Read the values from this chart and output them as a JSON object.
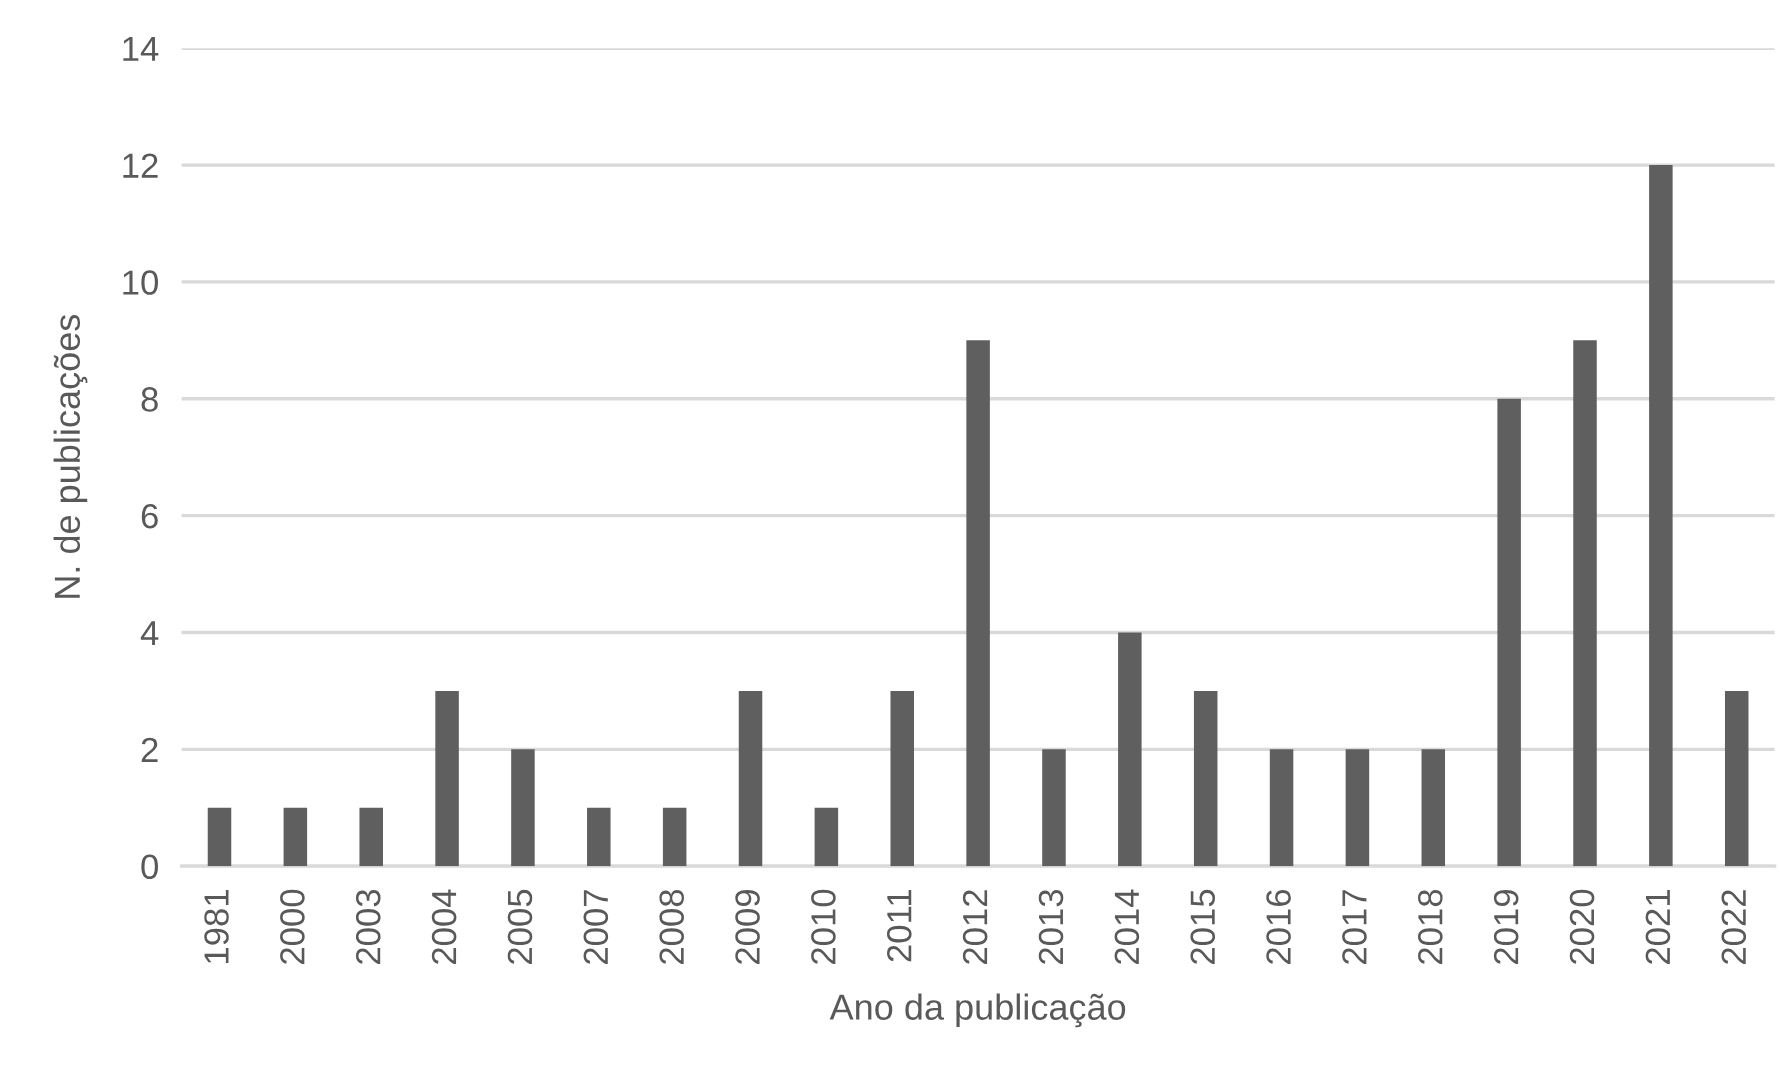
{
  "chart_data": {
    "type": "bar",
    "xlabel": "Ano da publicação",
    "ylabel": "N. de publicações",
    "categories": [
      "1981",
      "2000",
      "2003",
      "2004",
      "2005",
      "2007",
      "2008",
      "2009",
      "2010",
      "2011",
      "2012",
      "2013",
      "2014",
      "2015",
      "2016",
      "2017",
      "2018",
      "2019",
      "2020",
      "2021",
      "2022"
    ],
    "values": [
      1,
      1,
      1,
      3,
      2,
      1,
      1,
      3,
      1,
      3,
      9,
      2,
      4,
      3,
      2,
      2,
      2,
      8,
      9,
      12,
      3
    ],
    "color": "#5f5f5f",
    "ylim": [
      0,
      14
    ],
    "yticks": [
      0,
      2,
      4,
      6,
      8,
      10,
      12,
      14
    ],
    "grid": "y",
    "legend": false
  }
}
